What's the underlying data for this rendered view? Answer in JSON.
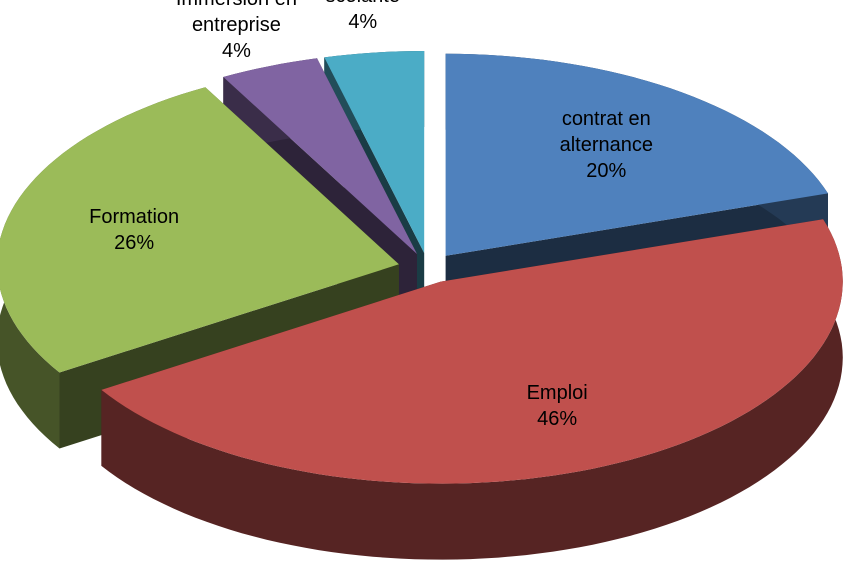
{
  "chart_data": {
    "type": "pie3d",
    "categories": [
      "contrat en alternance",
      "Emploi",
      "Formation",
      "Immersion en entreprise",
      "scolarité"
    ],
    "values": [
      20,
      46,
      26,
      4,
      4
    ],
    "value_labels": [
      "20%",
      "46%",
      "26%",
      "4%",
      "4%"
    ],
    "colors": [
      "#4f81bd",
      "#c0504d",
      "#9bbb59",
      "#8064a2",
      "#4bacc6"
    ]
  }
}
